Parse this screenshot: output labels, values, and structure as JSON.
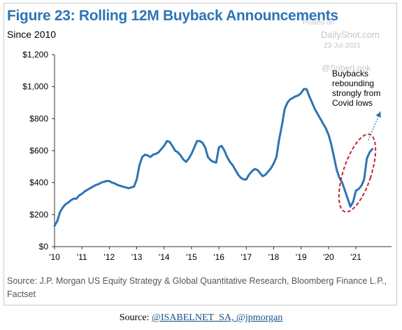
{
  "figure": {
    "title": "Figure 23: Rolling 12M Buyback Announcements",
    "subtitle": "Since 2010",
    "source_note": "Source: J.P. Morgan US Equity Strategy & Global Quantitative Research, Bloomberg Finance L.P., Factset"
  },
  "watermark": {
    "posted": "Posted on",
    "site": "DailyShot.com",
    "date": "23-Jul-2021",
    "handle": "@SoberLook"
  },
  "caption": {
    "label": "Source: ",
    "links": "@ISABELNET_SA, @jpmorgan"
  },
  "chart_data": {
    "type": "line",
    "title": "Figure 23: Rolling 12M Buyback Announcements",
    "subtitle": "Since 2010",
    "xlabel": "",
    "ylabel": "",
    "x_ticks": [
      "'10",
      "'11",
      "'12",
      "'13",
      "'14",
      "'15",
      "'16",
      "'17",
      "'18",
      "'19",
      "'20",
      "'21"
    ],
    "y_ticks": [
      "$0",
      "$200",
      "$400",
      "$600",
      "$800",
      "$1,000",
      "$1,200"
    ],
    "xlim": [
      2010.0,
      2022.3
    ],
    "ylim": [
      0,
      1200
    ],
    "grid": false,
    "legend": "none",
    "line_color": "#2d74b5",
    "annotation": {
      "text": [
        "Buybacks",
        "rebounding",
        "strongly from",
        "Covid lows"
      ],
      "highlight_color": "#c0272d",
      "arrow_to": [
        2021.9,
        845
      ]
    },
    "series": [
      {
        "x": [
          2010.0,
          2010.1,
          2010.2,
          2010.3,
          2010.4,
          2010.5,
          2010.6,
          2010.7,
          2010.8,
          2010.9,
          2011.0,
          2011.1,
          2011.2,
          2011.3,
          2011.4,
          2011.5,
          2011.6,
          2011.7,
          2011.8,
          2011.9,
          2012.0,
          2012.1,
          2012.2,
          2012.3,
          2012.4,
          2012.5,
          2012.6,
          2012.7,
          2012.8,
          2012.9,
          2013.0,
          2013.1,
          2013.2,
          2013.3,
          2013.4,
          2013.5,
          2013.6,
          2013.7,
          2013.8,
          2013.9,
          2014.0,
          2014.1,
          2014.2,
          2014.3,
          2014.4,
          2014.5,
          2014.6,
          2014.7,
          2014.8,
          2014.9,
          2015.0,
          2015.1,
          2015.2,
          2015.3,
          2015.4,
          2015.5,
          2015.6,
          2015.7,
          2015.8,
          2015.9,
          2016.0,
          2016.1,
          2016.2,
          2016.3,
          2016.4,
          2016.5,
          2016.6,
          2016.7,
          2016.8,
          2016.9,
          2017.0,
          2017.1,
          2017.2,
          2017.3,
          2017.4,
          2017.5,
          2017.6,
          2017.7,
          2017.8,
          2017.9,
          2018.0,
          2018.1,
          2018.2,
          2018.3,
          2018.4,
          2018.5,
          2018.6,
          2018.7,
          2018.8,
          2018.9,
          2019.0,
          2019.1,
          2019.2,
          2019.3,
          2019.4,
          2019.5,
          2019.6,
          2019.7,
          2019.8,
          2019.9,
          2020.0,
          2020.1,
          2020.2,
          2020.3,
          2020.4,
          2020.5,
          2020.6,
          2020.7,
          2020.8,
          2020.9,
          2021.0,
          2021.1,
          2021.2,
          2021.3,
          2021.4,
          2021.5,
          2021.6
        ],
        "values": [
          130,
          160,
          215,
          245,
          265,
          275,
          290,
          300,
          300,
          320,
          330,
          345,
          355,
          365,
          375,
          385,
          390,
          400,
          405,
          410,
          410,
          400,
          395,
          385,
          380,
          375,
          370,
          365,
          370,
          375,
          420,
          510,
          560,
          575,
          570,
          560,
          575,
          580,
          590,
          610,
          630,
          660,
          655,
          630,
          600,
          590,
          570,
          545,
          530,
          550,
          580,
          620,
          660,
          660,
          650,
          620,
          560,
          540,
          530,
          525,
          620,
          630,
          600,
          560,
          530,
          510,
          480,
          450,
          430,
          420,
          420,
          450,
          470,
          485,
          480,
          460,
          440,
          450,
          470,
          490,
          520,
          560,
          670,
          760,
          860,
          900,
          920,
          930,
          940,
          945,
          960,
          985,
          985,
          940,
          900,
          860,
          830,
          800,
          770,
          740,
          700,
          640,
          560,
          480,
          430,
          400,
          350,
          300,
          250,
          280,
          350,
          360,
          380,
          420,
          550,
          590,
          610
        ]
      }
    ]
  }
}
